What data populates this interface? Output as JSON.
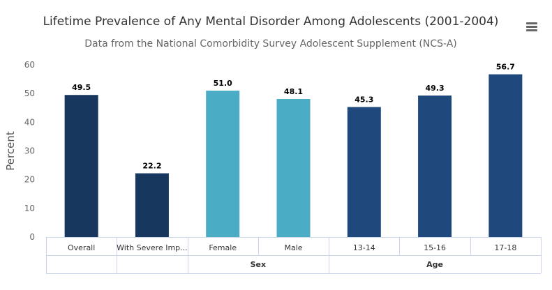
{
  "menu_icon": "hamburger-menu-icon",
  "chart_data": {
    "type": "bar",
    "title": "Lifetime Prevalence of Any Mental Disorder Among Adolescents (2001-2004)",
    "subtitle": "Data from the National Comorbidity Survey Adolescent Supplement (NCS-A)",
    "xlabel": "",
    "ylabel": "Percent",
    "ylim": [
      0,
      60
    ],
    "yticks": [
      0,
      10,
      20,
      30,
      40,
      50,
      60
    ],
    "categories": [
      "Overall",
      "With Severe Imp...",
      "Female",
      "Male",
      "13-14",
      "15-16",
      "17-18"
    ],
    "values": [
      49.5,
      22.2,
      51.0,
      48.1,
      45.3,
      49.3,
      56.7
    ],
    "value_labels": [
      "49.5",
      "22.2",
      "51.0",
      "48.1",
      "45.3",
      "49.3",
      "56.7"
    ],
    "colors": [
      "#17375e",
      "#17375e",
      "#4bacc6",
      "#4bacc6",
      "#1f497d",
      "#1f497d",
      "#1f497d"
    ],
    "groups": [
      {
        "label": "",
        "span": 1
      },
      {
        "label": "",
        "span": 1
      },
      {
        "label": "Sex",
        "span": 2
      },
      {
        "label": "Age",
        "span": 3
      }
    ],
    "grid": false,
    "legend": "none"
  }
}
